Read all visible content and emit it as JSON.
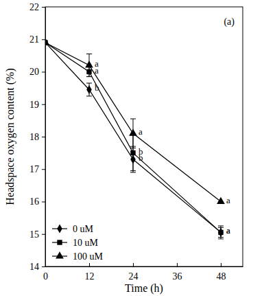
{
  "chart_data": {
    "type": "line",
    "title": "(a)",
    "x_label": "Time (h)",
    "y_label": "Headspace oxygen content (%)",
    "x": [
      0,
      12,
      24,
      48
    ],
    "xlim": [
      0,
      54
    ],
    "xticks": [
      0,
      12,
      24,
      36,
      48
    ],
    "ylim": [
      14,
      22
    ],
    "yticks": [
      14,
      15,
      16,
      17,
      18,
      19,
      20,
      21,
      22
    ],
    "legend": "lower left",
    "grid": false,
    "series": [
      {
        "name": "0 uM",
        "color": "#000000",
        "marker": "diamond",
        "line_style": "solid",
        "values": [
          20.9,
          19.45,
          17.3,
          15.05
        ],
        "errors": [
          0,
          0.2,
          0.4,
          0.15
        ],
        "letters": [
          null,
          "b",
          "b",
          "a"
        ]
      },
      {
        "name": "10 uM",
        "color": "#000000",
        "marker": "square",
        "line_style": "solid",
        "values": [
          20.9,
          20.0,
          17.5,
          15.05
        ],
        "errors": [
          0,
          0.15,
          0.55,
          0.2
        ],
        "letters": [
          null,
          "a",
          "b",
          "a"
        ]
      },
      {
        "name": "100 uM",
        "color": "#000000",
        "marker": "triangle",
        "line_style": "solid",
        "values": [
          20.9,
          20.2,
          18.1,
          16.0
        ],
        "errors": [
          0,
          0.35,
          0.45,
          0
        ],
        "letters": [
          null,
          "a",
          "a",
          "a"
        ]
      }
    ]
  }
}
